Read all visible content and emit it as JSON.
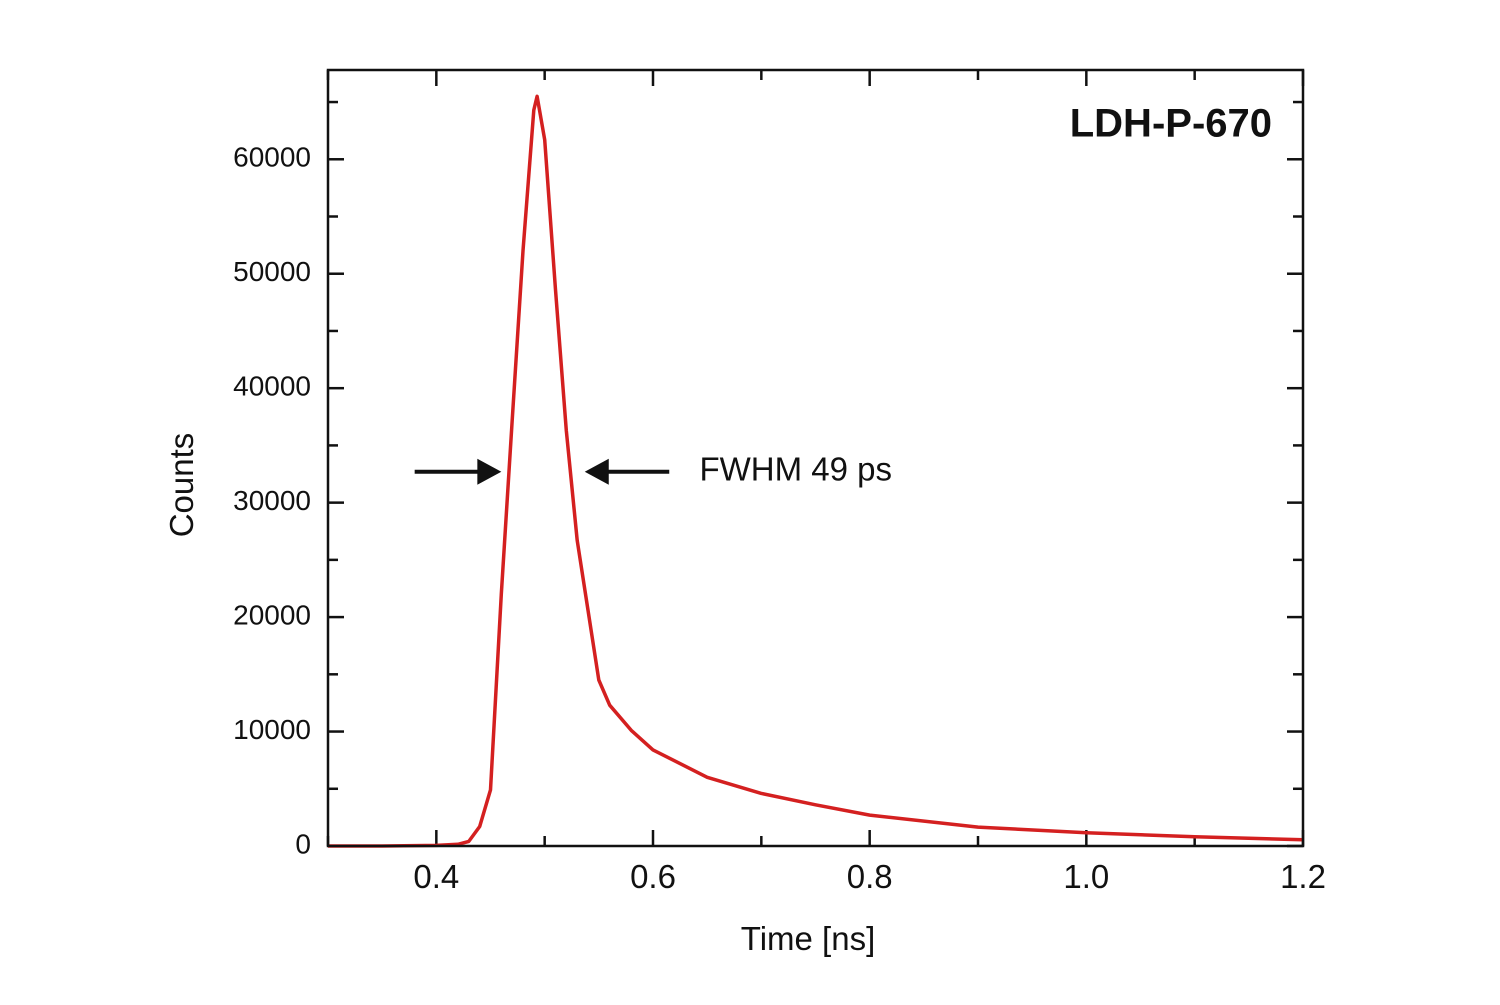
{
  "chart_data": {
    "type": "line",
    "title": "LDH-P-670",
    "xlabel": "Time [ns]",
    "ylabel": "Counts",
    "xlim": [
      0.3,
      1.2
    ],
    "ylim": [
      0,
      67800
    ],
    "xticks": [
      0.4,
      0.6,
      0.8,
      1.0,
      1.2
    ],
    "xtick_labels": [
      "0.4",
      "0.6",
      "0.8",
      "1.0",
      "1.2"
    ],
    "yticks": [
      0,
      10000,
      20000,
      30000,
      40000,
      50000,
      60000
    ],
    "ytick_labels": [
      "0",
      "10000",
      "20000",
      "30000",
      "40000",
      "50000",
      "60000"
    ],
    "grid": false,
    "series": [
      {
        "color": "#d42020",
        "x": [
          0.3,
          0.35,
          0.4,
          0.42,
          0.43,
          0.44,
          0.45,
          0.46,
          0.47,
          0.48,
          0.49,
          0.493,
          0.5,
          0.51,
          0.52,
          0.53,
          0.54,
          0.55,
          0.56,
          0.58,
          0.6,
          0.65,
          0.7,
          0.75,
          0.8,
          0.9,
          1.0,
          1.1,
          1.2
        ],
        "y": [
          0,
          0,
          50,
          150,
          400,
          1700,
          4900,
          22000,
          37200,
          52000,
          64300,
          65500,
          61700,
          48600,
          36300,
          26700,
          20600,
          14500,
          12300,
          10100,
          8400,
          6000,
          4600,
          3600,
          2700,
          1650,
          1150,
          800,
          550
        ]
      }
    ],
    "annotations": [
      {
        "text": "FWHM 49 ps",
        "x": 0.63,
        "y": 32700,
        "arrows": [
          {
            "from": 0.38,
            "to": 0.46
          },
          {
            "from": 0.615,
            "to": 0.537
          }
        ]
      }
    ]
  }
}
